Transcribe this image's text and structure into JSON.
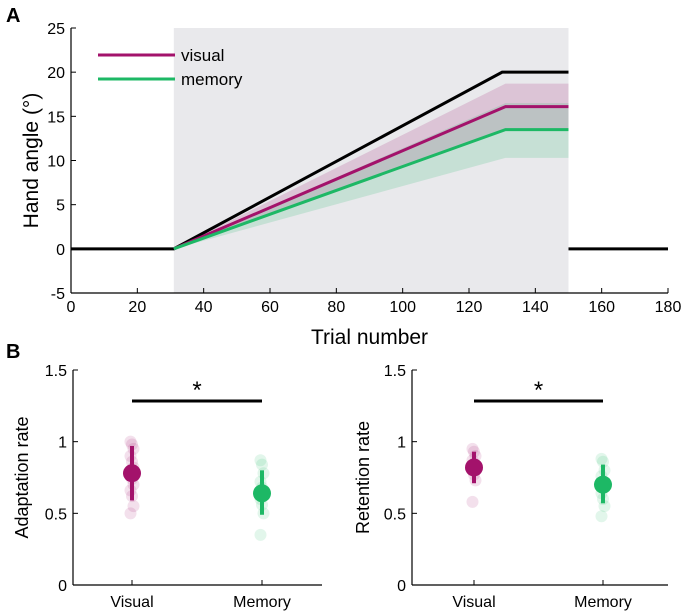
{
  "panel_a": {
    "label": "A"
  },
  "panel_b": {
    "label": "B"
  },
  "chart_data": [
    {
      "type": "line",
      "xlabel": "Trial number",
      "ylabel": "Hand angle (°)",
      "xlim": [
        0,
        180
      ],
      "ylim": [
        -5,
        25
      ],
      "xticks": [
        "0",
        "20",
        "40",
        "60",
        "80",
        "100",
        "120",
        "140",
        "160",
        "180"
      ],
      "yticks": [
        "-5",
        "0",
        "5",
        "10",
        "15",
        "20",
        "25"
      ],
      "shaded_region": {
        "x_start": 31,
        "x_end": 150,
        "color": "#e9e9ec"
      },
      "perturbation": {
        "color": "#000000",
        "segments": [
          {
            "x": [
              0,
              31,
              130,
              150
            ],
            "y": [
              0,
              0,
              20,
              20
            ]
          },
          {
            "x": [
              150,
              180
            ],
            "y": [
              0,
              0
            ]
          }
        ]
      },
      "series": [
        {
          "name": "visual",
          "color": "#a3126b",
          "x": [
            31,
            131,
            150
          ],
          "y": [
            0,
            16.1,
            16.1
          ],
          "band_low": [
            0,
            13.5,
            13.5
          ],
          "band_high": [
            0,
            18.7,
            18.7
          ]
        },
        {
          "name": "memory",
          "color": "#1db865",
          "x": [
            31,
            131,
            150
          ],
          "y": [
            0,
            13.5,
            13.5
          ],
          "band_low": [
            0,
            10.3,
            10.3
          ],
          "band_high": [
            0,
            16.5,
            16.5
          ]
        }
      ],
      "legend": {
        "placement": "top-left",
        "entries": [
          "visual",
          "memory"
        ]
      }
    },
    {
      "type": "scatter",
      "ylabel": "Adaptation rate",
      "categories": [
        "Visual",
        "Memory"
      ],
      "ylim": [
        0,
        1.5
      ],
      "yticks": [
        "0",
        "0.5",
        "1",
        "1.5"
      ],
      "significance": "*",
      "groups": [
        {
          "category": "Visual",
          "color": "#a3126b",
          "mean": 0.78,
          "ci": [
            0.59,
            0.97
          ],
          "points": [
            1.0,
            0.98,
            0.95,
            0.9,
            0.86,
            0.82,
            0.78,
            0.74,
            0.7,
            0.66,
            0.62,
            0.55,
            0.5
          ]
        },
        {
          "category": "Memory",
          "color": "#1db865",
          "mean": 0.64,
          "ci": [
            0.49,
            0.8
          ],
          "points": [
            0.87,
            0.84,
            0.78,
            0.72,
            0.68,
            0.65,
            0.6,
            0.56,
            0.5,
            0.35
          ]
        }
      ]
    },
    {
      "type": "scatter",
      "ylabel": "Retention rate",
      "categories": [
        "Visual",
        "Memory"
      ],
      "ylim": [
        0,
        1.5
      ],
      "yticks": [
        "0",
        "0.5",
        "1",
        "1.5"
      ],
      "significance": "*",
      "groups": [
        {
          "category": "Visual",
          "color": "#a3126b",
          "mean": 0.82,
          "ci": [
            0.71,
            0.93
          ],
          "points": [
            0.95,
            0.93,
            0.9,
            0.87,
            0.84,
            0.82,
            0.8,
            0.77,
            0.73,
            0.58
          ]
        },
        {
          "category": "Memory",
          "color": "#1db865",
          "mean": 0.7,
          "ci": [
            0.57,
            0.84
          ],
          "points": [
            0.88,
            0.86,
            0.8,
            0.76,
            0.72,
            0.68,
            0.64,
            0.6,
            0.55,
            0.48
          ]
        }
      ]
    }
  ]
}
